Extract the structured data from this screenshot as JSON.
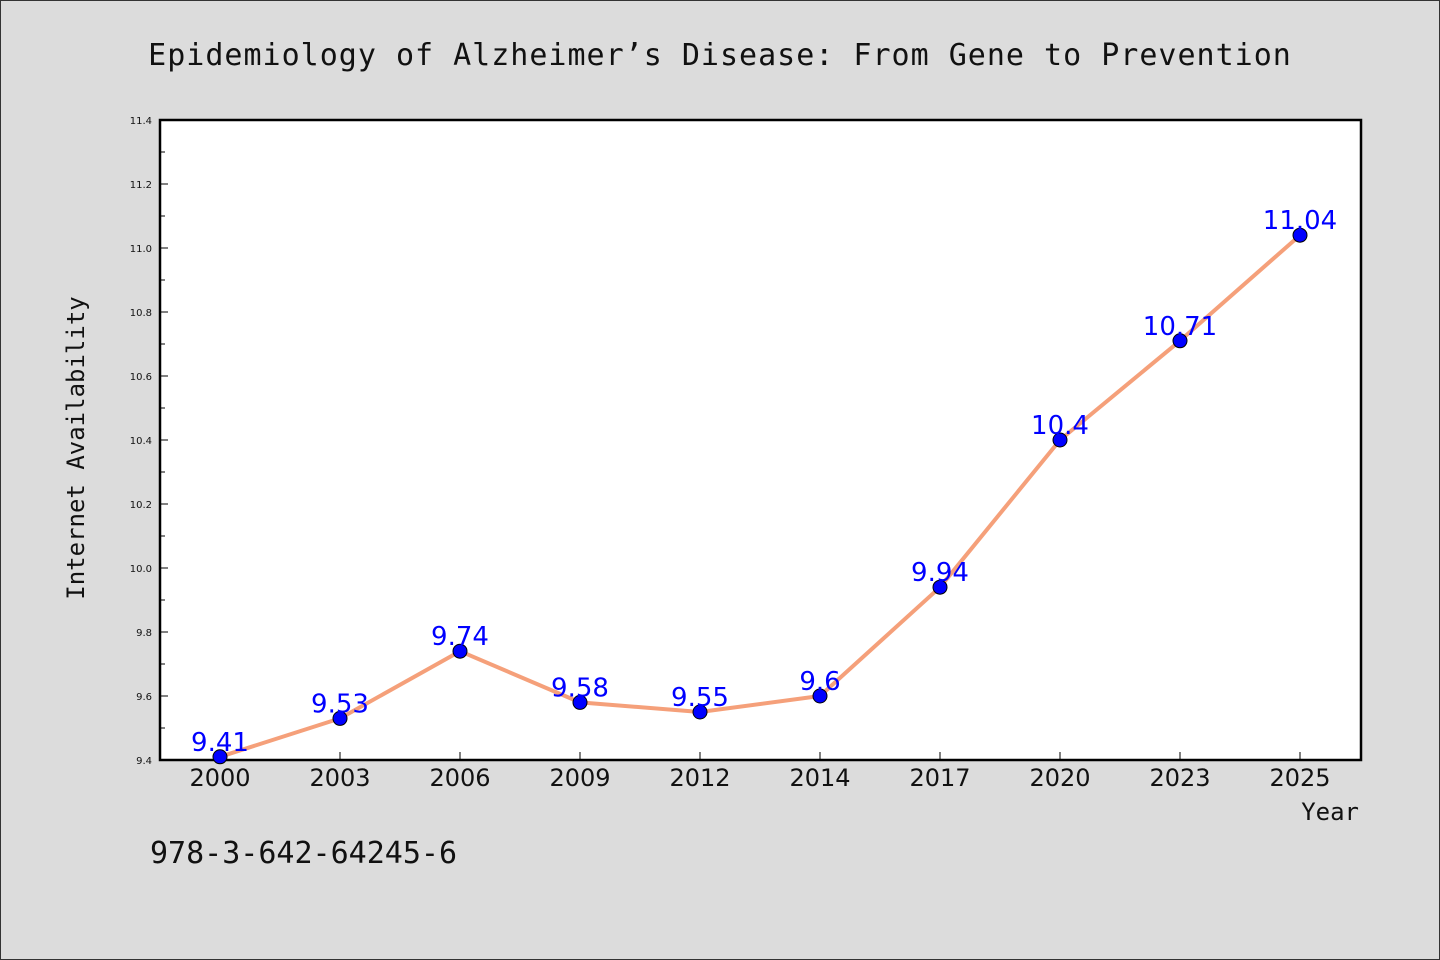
{
  "chart_data": {
    "type": "line",
    "title": "Epidemiology of Alzheimer’s Disease: From Gene to Prevention",
    "xlabel": "Year",
    "ylabel": "Internet Availability",
    "categories": [
      "2000",
      "2003",
      "2006",
      "2009",
      "2012",
      "2014",
      "2017",
      "2020",
      "2023",
      "2025"
    ],
    "series": [
      {
        "values": [
          9.41,
          9.53,
          9.74,
          9.58,
          9.55,
          9.6,
          9.94,
          10.4,
          10.71,
          11.04
        ],
        "labels": [
          "9.41",
          "9.53",
          "9.74",
          "9.58",
          "9.55",
          "9.6",
          "9.94",
          "10.4",
          "10.71",
          "11.04"
        ],
        "line_color": "#f5a07a",
        "marker_color": "#0000ff"
      }
    ],
    "ylim": [
      9.4,
      11.4
    ],
    "yticks": [
      "9.4",
      "9.6",
      "9.8",
      "10.0",
      "10.2",
      "10.4",
      "10.6",
      "10.8",
      "11.0",
      "11.2",
      "11.4"
    ],
    "grid": false,
    "legend": "none"
  },
  "footer": {
    "isbn": "978-3-642-64245-6"
  }
}
